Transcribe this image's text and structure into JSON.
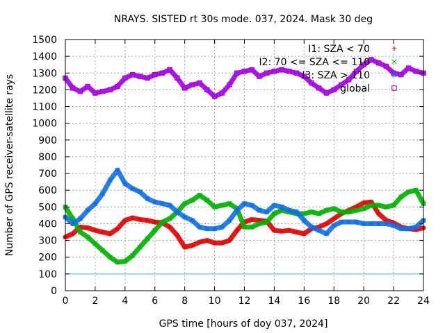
{
  "chart_data": {
    "type": "scatter",
    "title": "NRAYS. SISTED rt 30s mode. 037, 2024. Mask 30 deg",
    "xlabel": "GPS time [hours of doy 037, 2024]",
    "ylabel": "Number of GPS receiver-satellite rays",
    "xlim": [
      0,
      24
    ],
    "ylim": [
      0,
      1500
    ],
    "xticks": [
      0,
      2,
      4,
      6,
      8,
      10,
      12,
      14,
      16,
      18,
      20,
      22,
      24
    ],
    "yticks": [
      0,
      100,
      200,
      300,
      400,
      500,
      600,
      700,
      800,
      900,
      1000,
      1100,
      1200,
      1300,
      1400,
      1500
    ],
    "grid": true,
    "legend_position": "top-right",
    "threshold_line": {
      "y": 100,
      "color": "#40c8c8"
    },
    "series": [
      {
        "name": "I1: SZA < 70",
        "marker": "+",
        "color": "#e00000",
        "x": [
          0,
          0.5,
          1,
          1.5,
          2,
          2.5,
          3,
          3.5,
          4,
          4.5,
          5,
          5.5,
          6,
          6.5,
          7,
          7.5,
          8,
          8.5,
          9,
          9.5,
          10,
          10.5,
          11,
          11.5,
          12,
          12.5,
          13,
          13.5,
          14,
          14.5,
          15,
          15.5,
          16,
          16.5,
          17,
          17.5,
          18,
          18.5,
          19,
          19.5,
          20,
          20.5,
          21,
          21.5,
          22,
          22.5,
          23,
          23.5,
          24
        ],
        "y": [
          320,
          340,
          380,
          375,
          360,
          350,
          340,
          370,
          420,
          435,
          425,
          420,
          410,
          405,
          380,
          330,
          260,
          270,
          290,
          300,
          285,
          285,
          300,
          360,
          410,
          425,
          420,
          415,
          360,
          355,
          360,
          350,
          340,
          370,
          380,
          400,
          430,
          460,
          480,
          500,
          525,
          530,
          460,
          420,
          405,
          380,
          370,
          365,
          375
        ]
      },
      {
        "name": "I2: 70 <= SZA <= 110",
        "marker": "x",
        "color": "#00b000",
        "x": [
          0,
          0.5,
          1,
          1.5,
          2,
          2.5,
          3,
          3.5,
          4,
          4.5,
          5,
          5.5,
          6,
          6.5,
          7,
          7.5,
          8,
          8.5,
          9,
          9.5,
          10,
          10.5,
          11,
          11.5,
          12,
          12.5,
          13,
          13.5,
          14,
          14.5,
          15,
          15.5,
          16,
          16.5,
          17,
          17.5,
          18,
          18.5,
          19,
          19.5,
          20,
          20.5,
          21,
          21.5,
          22,
          22.5,
          23,
          23.5,
          24
        ],
        "y": [
          500,
          430,
          350,
          320,
          280,
          240,
          200,
          170,
          175,
          210,
          260,
          310,
          360,
          410,
          430,
          470,
          520,
          540,
          570,
          540,
          500,
          510,
          520,
          490,
          380,
          380,
          400,
          410,
          460,
          480,
          470,
          460,
          460,
          470,
          460,
          480,
          490,
          470,
          470,
          480,
          490,
          510,
          510,
          500,
          510,
          560,
          590,
          600,
          520
        ]
      },
      {
        "name": "I3: SZA > 110",
        "marker": "*",
        "color": "#1070e0",
        "x": [
          0,
          0.5,
          1,
          1.5,
          2,
          2.5,
          3,
          3.5,
          4,
          4.5,
          5,
          5.5,
          6,
          6.5,
          7,
          7.5,
          8,
          8.5,
          9,
          9.5,
          10,
          10.5,
          11,
          11.5,
          12,
          12.5,
          13,
          13.5,
          14,
          14.5,
          15,
          15.5,
          16,
          16.5,
          17,
          17.5,
          18,
          18.5,
          19,
          19.5,
          20,
          20.5,
          21,
          21.5,
          22,
          22.5,
          23,
          23.5,
          24
        ],
        "y": [
          440,
          400,
          430,
          480,
          520,
          580,
          660,
          720,
          640,
          610,
          590,
          550,
          530,
          520,
          510,
          470,
          440,
          420,
          380,
          370,
          370,
          380,
          420,
          480,
          520,
          510,
          480,
          470,
          510,
          500,
          480,
          470,
          420,
          380,
          360,
          340,
          390,
          410,
          410,
          410,
          400,
          400,
          400,
          400,
          390,
          370,
          370,
          380,
          420
        ]
      },
      {
        "name": "global",
        "marker": "square",
        "color": "#a000e0",
        "x": [
          0,
          0.5,
          1,
          1.5,
          2,
          2.5,
          3,
          3.5,
          4,
          4.5,
          5,
          5.5,
          6,
          6.5,
          7,
          7.5,
          8,
          8.5,
          9,
          9.5,
          10,
          10.5,
          11,
          11.5,
          12,
          12.5,
          13,
          13.5,
          14,
          14.5,
          15,
          15.5,
          16,
          16.5,
          17,
          17.5,
          18,
          18.5,
          19,
          19.5,
          20,
          20.5,
          21,
          21.5,
          22,
          22.5,
          23,
          23.5,
          24
        ],
        "y": [
          1270,
          1210,
          1190,
          1220,
          1180,
          1190,
          1200,
          1220,
          1270,
          1290,
          1280,
          1270,
          1290,
          1300,
          1320,
          1270,
          1210,
          1230,
          1240,
          1200,
          1160,
          1180,
          1230,
          1300,
          1310,
          1320,
          1280,
          1300,
          1310,
          1320,
          1310,
          1300,
          1280,
          1240,
          1210,
          1180,
          1200,
          1230,
          1260,
          1310,
          1350,
          1380,
          1360,
          1340,
          1300,
          1290,
          1330,
          1310,
          1300
        ]
      }
    ]
  }
}
